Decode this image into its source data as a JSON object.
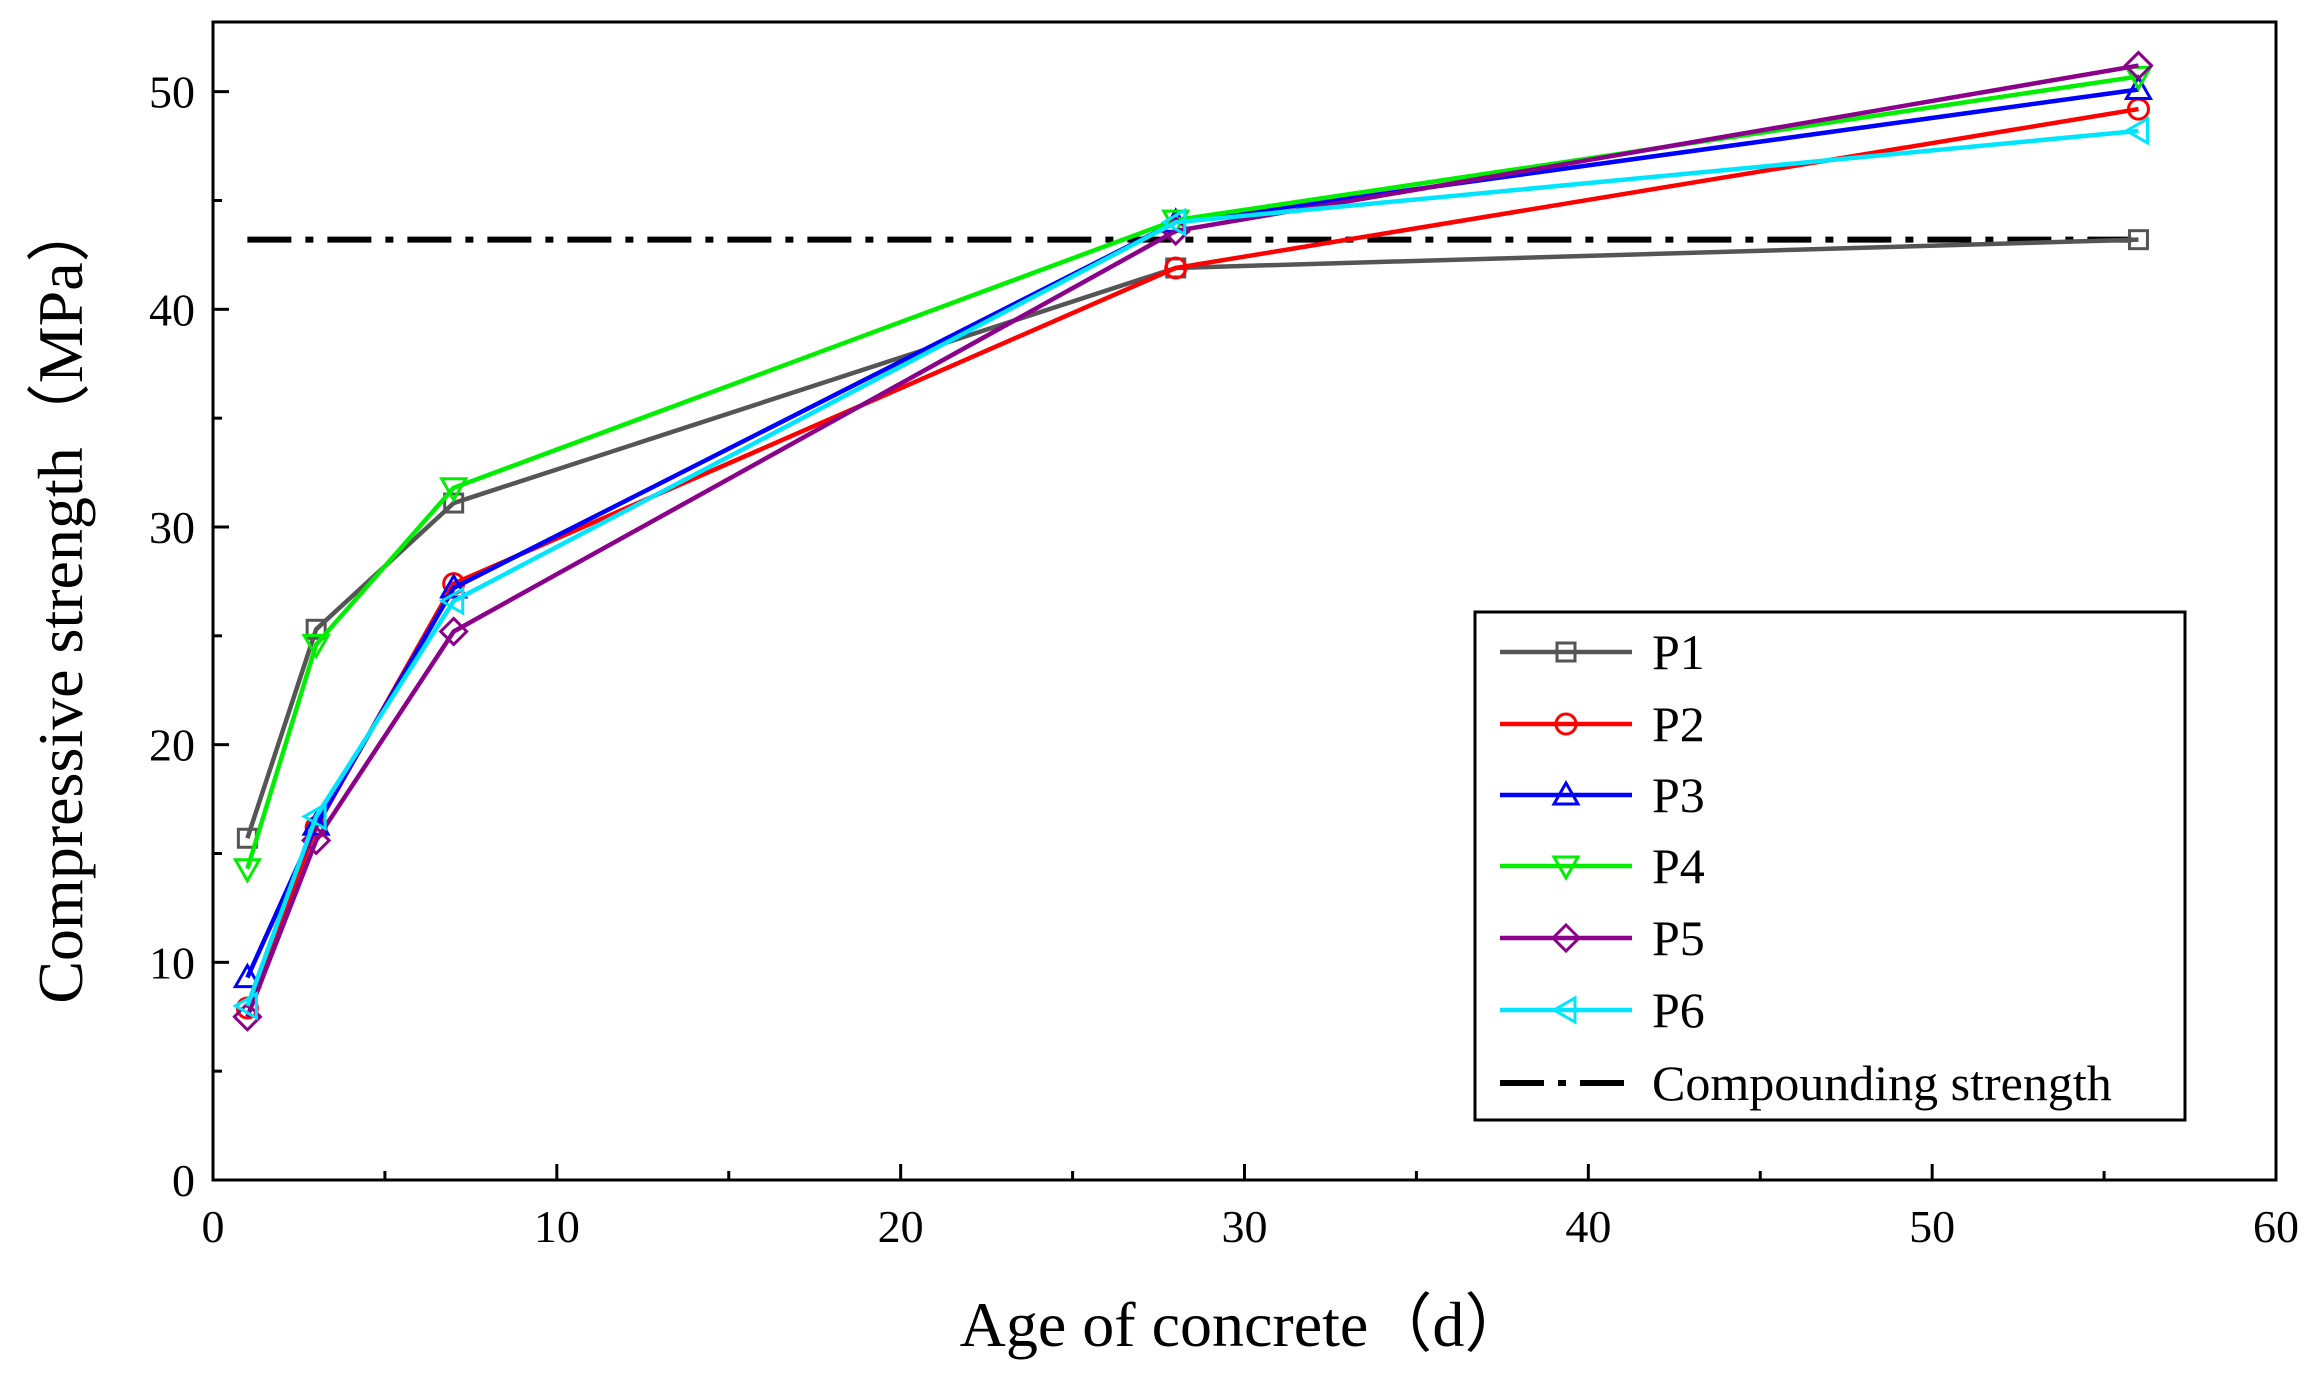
{
  "chart_data": {
    "type": "line",
    "title": "",
    "xlabel": "Age of concrete（d）",
    "ylabel": "Compressive strength（MPa）",
    "xlim": [
      0,
      60
    ],
    "ylim": [
      0,
      55
    ],
    "xticks": [
      0,
      10,
      20,
      30,
      40,
      50,
      60
    ],
    "yticks": [
      0,
      10,
      20,
      30,
      40,
      50
    ],
    "grid": false,
    "legend_position": "bottom-right",
    "x": [
      1,
      3,
      7,
      28,
      56
    ],
    "series": [
      {
        "name": "P1",
        "color": "#555555",
        "marker": "square",
        "values": [
          15.7,
          25.3,
          31.1,
          41.9,
          43.2
        ]
      },
      {
        "name": "P2",
        "color": "#ff0000",
        "marker": "circle",
        "values": [
          7.9,
          16.2,
          27.4,
          41.9,
          49.2
        ]
      },
      {
        "name": "P3",
        "color": "#0000ff",
        "marker": "triangle-up",
        "values": [
          9.3,
          16.3,
          27.2,
          44.0,
          50.1
        ]
      },
      {
        "name": "P4",
        "color": "#00ee00",
        "marker": "triangle-down",
        "values": [
          14.3,
          24.6,
          31.8,
          44.1,
          50.7
        ]
      },
      {
        "name": "P5",
        "color": "#8b008b",
        "marker": "diamond",
        "values": [
          7.5,
          15.6,
          25.2,
          43.6,
          51.2
        ]
      },
      {
        "name": "P6",
        "color": "#00e5ff",
        "marker": "triangle-left",
        "values": [
          8.0,
          16.7,
          26.6,
          44.0,
          48.2
        ]
      }
    ],
    "reference_line": {
      "name": "Compounding strength",
      "value": 43.2,
      "x_range": [
        1,
        56
      ],
      "color": "#000000",
      "style": "dash-dot"
    }
  }
}
